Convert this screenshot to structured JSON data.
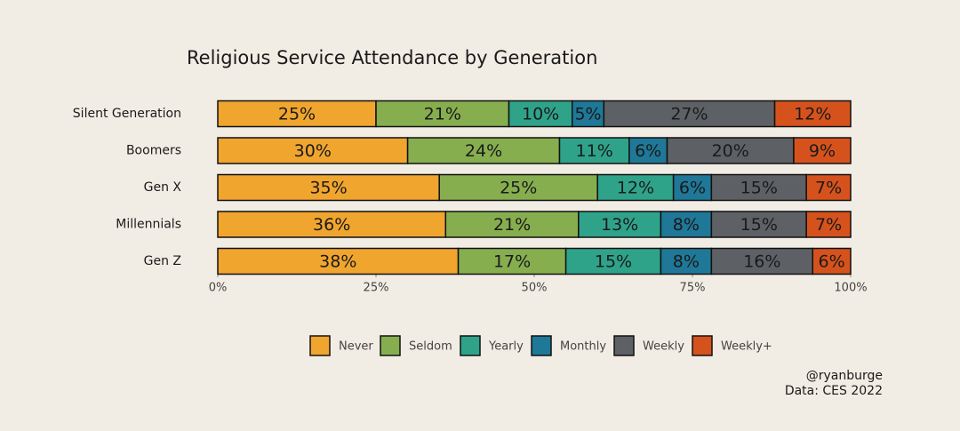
{
  "chart_data": {
    "type": "stacked_barh",
    "title": "Religious Service Attendance by Generation",
    "categories": [
      "Silent Generation",
      "Boomers",
      "Gen X",
      "Millennials",
      "Gen Z"
    ],
    "series": [
      {
        "name": "Never",
        "color": "#f0a52e",
        "values": [
          25,
          30,
          35,
          36,
          38
        ],
        "value_labels": [
          "25%",
          "30%",
          "35%",
          "36%",
          "38%"
        ]
      },
      {
        "name": "Seldom",
        "color": "#86ae4f",
        "values": [
          21,
          24,
          25,
          21,
          17
        ],
        "value_labels": [
          "21%",
          "24%",
          "25%",
          "21%",
          "17%"
        ]
      },
      {
        "name": "Yearly",
        "color": "#2fa38a",
        "values": [
          10,
          11,
          12,
          13,
          15
        ],
        "value_labels": [
          "10%",
          "11%",
          "12%",
          "13%",
          "15%"
        ]
      },
      {
        "name": "Monthly",
        "color": "#1f7898",
        "values": [
          5,
          6,
          6,
          8,
          8
        ],
        "value_labels": [
          "5%",
          "6%",
          "6%",
          "8%",
          "8%"
        ]
      },
      {
        "name": "Weekly",
        "color": "#5d6165",
        "values": [
          27,
          20,
          15,
          15,
          16
        ],
        "value_labels": [
          "27%",
          "20%",
          "15%",
          "15%",
          "16%"
        ]
      },
      {
        "name": "Weekly+",
        "color": "#d6521d",
        "values": [
          12,
          9,
          7,
          7,
          6
        ],
        "value_labels": [
          "12%",
          "9%",
          "7%",
          "7%",
          "6%"
        ]
      }
    ],
    "xlim": [
      0,
      100
    ],
    "xticks": [
      {
        "value": 0,
        "label": "0%"
      },
      {
        "value": 25,
        "label": "25%"
      },
      {
        "value": 50,
        "label": "50%"
      },
      {
        "value": 75,
        "label": "75%"
      },
      {
        "value": 100,
        "label": "100%"
      }
    ],
    "legend": "bottom",
    "annotations": [
      "@ryanburge",
      "Data: CES 2022"
    ]
  }
}
